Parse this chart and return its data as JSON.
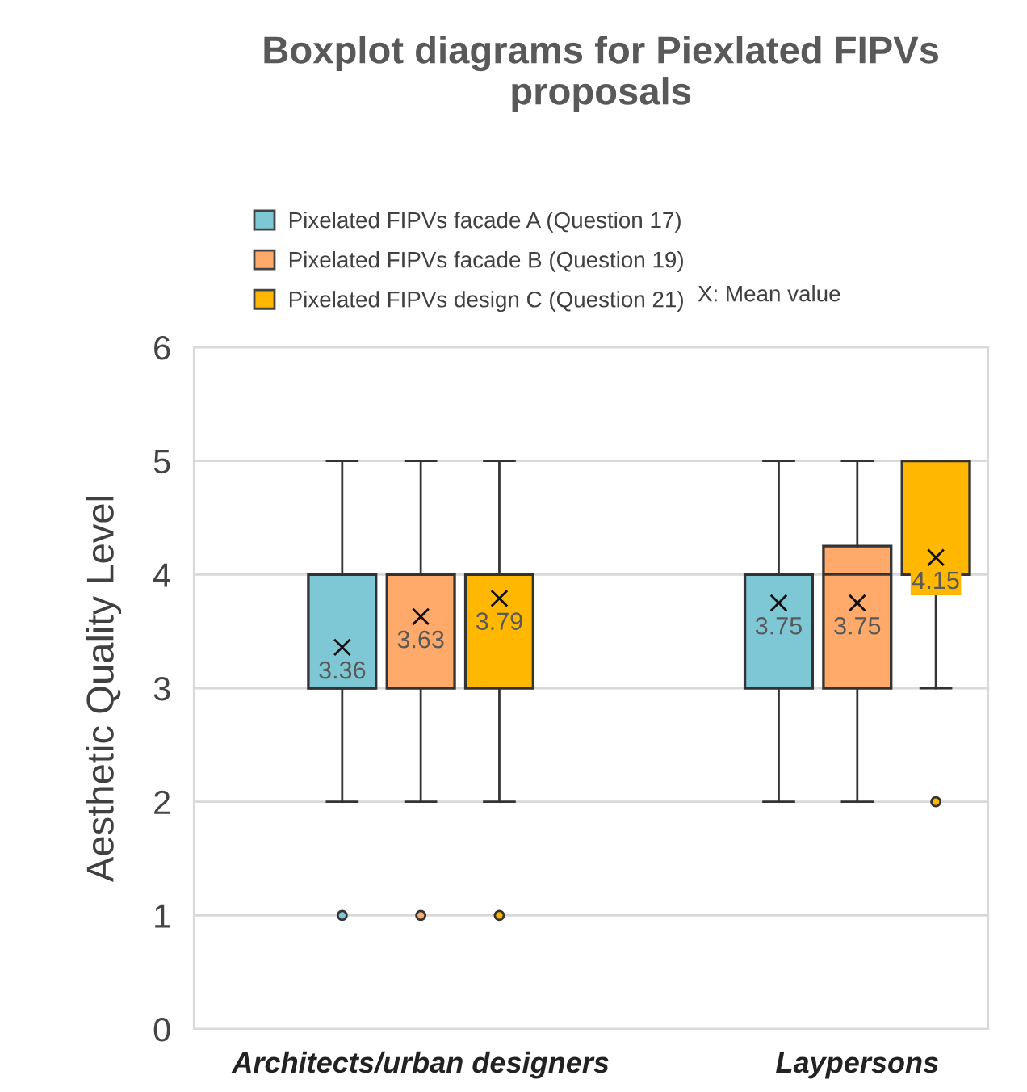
{
  "chart_data": {
    "type": "box",
    "title": "Boxplot diagrams for Piexlated FIPVs\nproposals",
    "ylabel": "Aesthetic Quality Level",
    "categories": [
      "Architects/urban designers",
      "Laypersons"
    ],
    "series": [
      {
        "name": "Pixelated FIPVs facade A (Question 17)",
        "color": "#7ec8d6",
        "boxes": [
          {
            "low": 2,
            "q1": 3,
            "median": 3,
            "q3": 4,
            "high": 5,
            "mean": 3.36,
            "outliers": [
              1
            ]
          },
          {
            "low": 2,
            "q1": 3,
            "median": 4,
            "q3": 4,
            "high": 5,
            "mean": 3.75
          }
        ],
        "value_labels": [
          "3.36",
          "3.75"
        ]
      },
      {
        "name": "Pixelated FIPVs facade B (Question 19)",
        "color": "#ffaa6b",
        "boxes": [
          {
            "low": 2,
            "q1": 3,
            "median": 4,
            "q3": 4,
            "high": 5,
            "mean": 3.63,
            "outliers": [
              1
            ]
          },
          {
            "low": 2,
            "q1": 3,
            "median": 4,
            "q3": 4.25,
            "high": 5,
            "mean": 3.75
          }
        ],
        "value_labels": [
          "3.63",
          "3.75"
        ]
      },
      {
        "name": "Pixelated FIPVs design C (Question 21)",
        "color": "#ffb700",
        "boxes": [
          {
            "low": 2,
            "q1": 3,
            "median": 4,
            "q3": 4,
            "high": 5,
            "mean": 3.79,
            "outliers": [
              1
            ]
          },
          {
            "low": 3,
            "q1": 4,
            "median": 4,
            "q3": 5,
            "high": 5,
            "mean": 4.15,
            "outliers": [
              2
            ]
          }
        ],
        "value_labels": [
          "3.79",
          "4.15"
        ]
      }
    ],
    "annotations": [
      "X: Mean value"
    ],
    "ylim": [
      0,
      6
    ],
    "yticks": [
      0,
      1,
      2,
      3,
      4,
      5,
      6
    ],
    "grid": "y",
    "legend": "top"
  }
}
